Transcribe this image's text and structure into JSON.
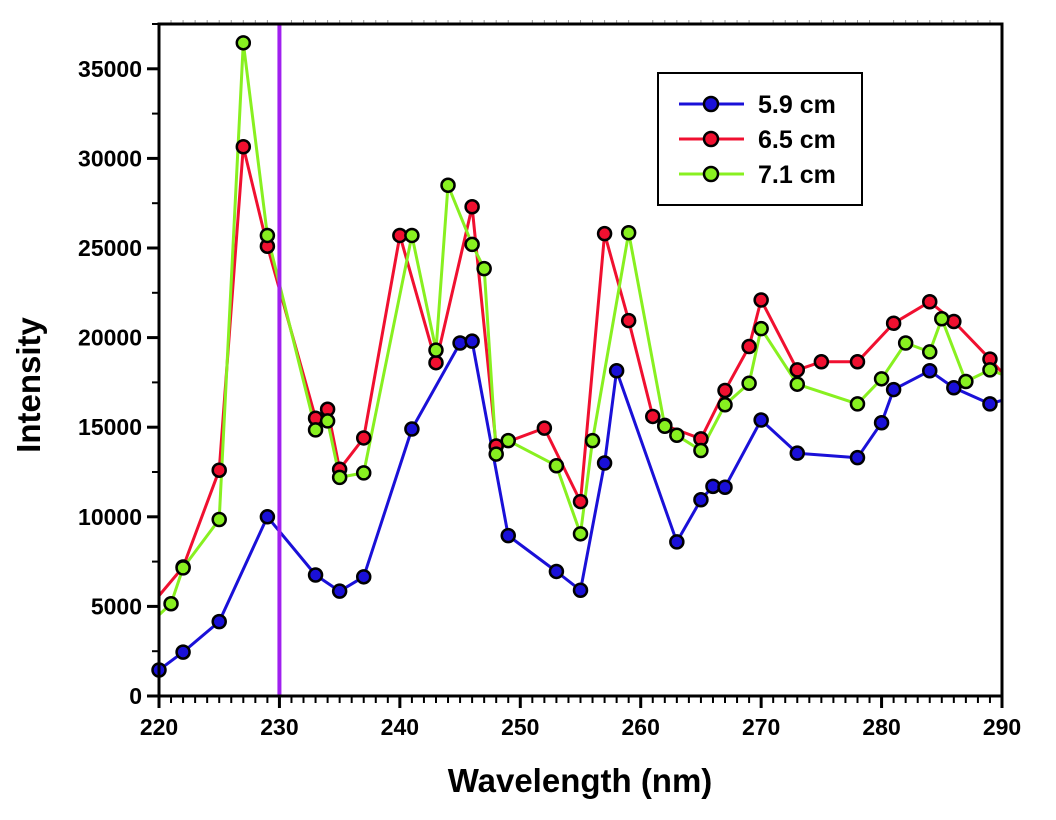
{
  "chart_data": {
    "type": "line",
    "title": "",
    "xlabel": "Wavelength (nm)",
    "ylabel": "Intensity",
    "xlim": [
      220,
      290
    ],
    "ylim": [
      0,
      37500
    ],
    "xticks": [
      220,
      230,
      240,
      250,
      260,
      270,
      280,
      290
    ],
    "xtick_labels": [
      "220",
      "230",
      "240",
      "250",
      "260",
      "270",
      "280",
      "290"
    ],
    "xminor_step": 1,
    "yticks": [
      0,
      5000,
      10000,
      15000,
      20000,
      25000,
      30000,
      35000
    ],
    "ytick_labels": [
      "0",
      "5000",
      "10000",
      "15000",
      "20000",
      "25000",
      "30000",
      "35000"
    ],
    "yminor_step": 2500,
    "grid": false,
    "legend_position": "top-right",
    "vertical_marker": {
      "x": 230,
      "color": "#a020f0"
    },
    "series": [
      {
        "name": "5.9 cm",
        "color": "#1a10d8",
        "x": [
          220,
          222,
          225,
          229,
          233,
          235,
          237,
          241,
          245,
          246,
          249,
          253,
          255,
          257,
          258,
          263,
          265,
          266,
          267,
          270,
          273,
          278,
          280,
          281,
          284,
          286,
          289,
          291
        ],
        "y": [
          1450,
          2450,
          4150,
          10000,
          6750,
          5850,
          6650,
          14900,
          19700,
          19800,
          8950,
          6950,
          5900,
          13000,
          18150,
          8600,
          10950,
          11700,
          11650,
          15400,
          13550,
          13300,
          15250,
          17100,
          18150,
          17200,
          16300,
          16700
        ],
        "markers": [
          true,
          true,
          true,
          true,
          true,
          true,
          true,
          true,
          true,
          true,
          true,
          true,
          true,
          true,
          true,
          true,
          true,
          true,
          true,
          true,
          true,
          true,
          true,
          true,
          true,
          true,
          true,
          false
        ]
      },
      {
        "name": "6.5 cm",
        "color": "#f01030",
        "x": [
          219,
          222,
          225,
          227,
          229,
          233,
          234,
          235,
          237,
          240,
          243,
          246,
          248,
          252,
          255,
          257,
          259,
          261,
          262,
          265,
          267,
          269,
          270,
          273,
          275,
          278,
          281,
          284,
          286,
          289,
          291
        ],
        "y": [
          4800,
          7200,
          12600,
          30650,
          25100,
          15500,
          16000,
          12650,
          14400,
          25700,
          18600,
          27300,
          13950,
          14950,
          10850,
          25800,
          20950,
          15600,
          15100,
          14350,
          17050,
          19500,
          22100,
          18200,
          18650,
          18650,
          20800,
          22000,
          20900,
          18800,
          17300
        ],
        "markers": [
          false,
          true,
          true,
          true,
          true,
          true,
          true,
          true,
          true,
          true,
          true,
          true,
          true,
          true,
          true,
          true,
          true,
          true,
          true,
          true,
          true,
          true,
          true,
          true,
          true,
          true,
          true,
          true,
          true,
          true,
          false
        ]
      },
      {
        "name": "7.1 cm",
        "color": "#88f020",
        "x": [
          219,
          221,
          222,
          225,
          227,
          229,
          233,
          234,
          235,
          237,
          241,
          243,
          244,
          246,
          247,
          248,
          249,
          253,
          255,
          256,
          259,
          262,
          263,
          265,
          267,
          269,
          270,
          273,
          278,
          280,
          282,
          284,
          285,
          287,
          289,
          291
        ],
        "y": [
          3900,
          5150,
          7150,
          9850,
          36450,
          25700,
          14850,
          15350,
          12200,
          12450,
          25700,
          19300,
          28500,
          25200,
          23850,
          13500,
          14250,
          12850,
          9050,
          14250,
          25850,
          15050,
          14550,
          13700,
          16250,
          17450,
          20500,
          17400,
          16300,
          17700,
          19700,
          19200,
          21050,
          17550,
          18200,
          17700
        ],
        "markers": [
          false,
          true,
          true,
          true,
          true,
          true,
          true,
          true,
          true,
          true,
          true,
          true,
          true,
          true,
          true,
          true,
          true,
          true,
          true,
          true,
          true,
          true,
          true,
          true,
          true,
          true,
          true,
          true,
          true,
          true,
          true,
          true,
          true,
          true,
          true,
          false
        ]
      }
    ]
  }
}
